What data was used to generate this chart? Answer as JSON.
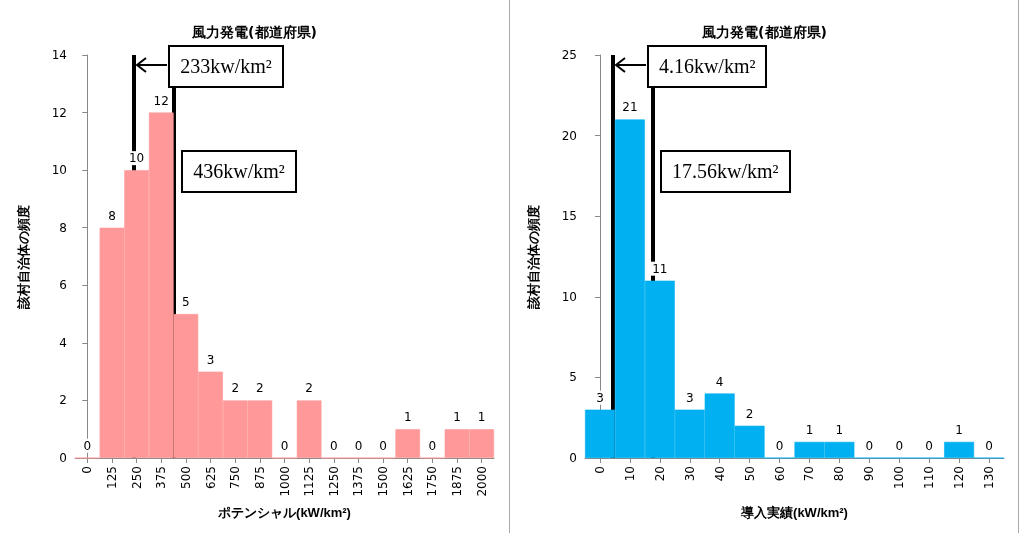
{
  "chart_data": [
    {
      "type": "bar",
      "title": "風力発電(都道府県)",
      "xlabel": "ポテンシャル(kW/km²)",
      "ylabel": "該村自治体の頻度",
      "x": [
        0,
        125,
        250,
        375,
        500,
        625,
        750,
        875,
        1000,
        1125,
        1250,
        1375,
        1500,
        1625,
        1750,
        1875,
        2000
      ],
      "values": [
        0,
        8,
        10,
        12,
        5,
        3,
        2,
        2,
        0,
        2,
        0,
        0,
        0,
        1,
        0,
        1,
        1
      ],
      "color": "#ff9999",
      "xlim": [
        -62.5,
        2062.5
      ],
      "xticks": [
        0,
        125,
        250,
        375,
        500,
        625,
        750,
        875,
        1000,
        1125,
        1250,
        1375,
        1500,
        1625,
        1750,
        1875,
        2000
      ],
      "ylim": [
        0,
        14
      ],
      "yticks": [
        0,
        2,
        4,
        6,
        8,
        10,
        12,
        14
      ],
      "data_labels": true,
      "grid": false,
      "ref_lines": [
        {
          "axis": "x",
          "value": 233,
          "label": "233kw/km²",
          "color": "#000000"
        },
        {
          "axis": "x",
          "value": 436,
          "label": "436kw/km²",
          "color": "#000000"
        }
      ]
    },
    {
      "type": "bar",
      "title": "風力発電(都道府県)",
      "xlabel": "導入実績(kW/km²)",
      "ylabel": "該村自治体の頻度",
      "x": [
        0,
        10,
        20,
        30,
        40,
        50,
        60,
        70,
        80,
        90,
        100,
        110,
        120,
        130
      ],
      "values": [
        3,
        21,
        11,
        3,
        4,
        2,
        0,
        1,
        1,
        0,
        0,
        0,
        1,
        0
      ],
      "color": "#00b0f0",
      "xlim": [
        -5,
        135
      ],
      "xticks": [
        0,
        10,
        20,
        30,
        40,
        50,
        60,
        70,
        80,
        90,
        100,
        110,
        120,
        130
      ],
      "ylim": [
        0,
        25
      ],
      "yticks": [
        0,
        5,
        10,
        15,
        20,
        25
      ],
      "data_labels": true,
      "grid": false,
      "ref_lines": [
        {
          "axis": "x",
          "value": 4.16,
          "label": "4.16kw/km²",
          "color": "#000000"
        },
        {
          "axis": "x",
          "value": 17.56,
          "label": "17.56kw/km²",
          "color": "#000000"
        }
      ]
    }
  ]
}
